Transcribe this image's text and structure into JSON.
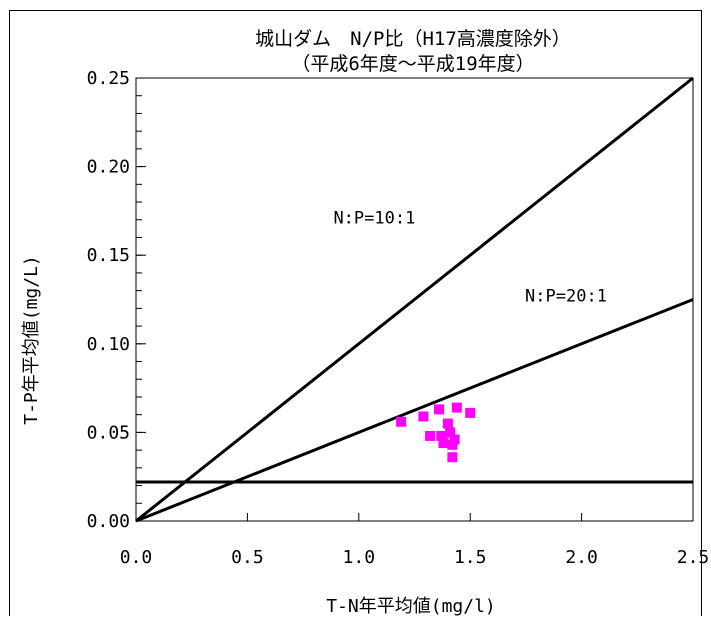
{
  "chart_data": {
    "type": "scatter",
    "title": "城山ダム　N/P比（H17高濃度除外）",
    "subtitle": "（平成6年度～平成19年度）",
    "xlabel": "T-N年平均値(mg/l)",
    "ylabel": "T-P年平均値(mg/L)",
    "xlim": [
      0,
      2.5
    ],
    "ylim": [
      0,
      0.25
    ],
    "x_ticks": [
      "0.0",
      "0.5",
      "1.0",
      "1.5",
      "2.0",
      "2.5"
    ],
    "y_ticks": [
      "0.00",
      "0.05",
      "0.10",
      "0.15",
      "0.20",
      "0.25"
    ],
    "grid": false,
    "marker_color": "#ff00ff",
    "points": [
      {
        "x": 1.19,
        "y": 0.056
      },
      {
        "x": 1.29,
        "y": 0.059
      },
      {
        "x": 1.32,
        "y": 0.048
      },
      {
        "x": 1.36,
        "y": 0.063
      },
      {
        "x": 1.37,
        "y": 0.048
      },
      {
        "x": 1.38,
        "y": 0.044
      },
      {
        "x": 1.4,
        "y": 0.055
      },
      {
        "x": 1.41,
        "y": 0.05
      },
      {
        "x": 1.42,
        "y": 0.043
      },
      {
        "x": 1.43,
        "y": 0.046
      },
      {
        "x": 1.44,
        "y": 0.064
      },
      {
        "x": 1.42,
        "y": 0.036
      },
      {
        "x": 1.5,
        "y": 0.061
      }
    ],
    "reference_lines": [
      {
        "label": "N:P=10:1",
        "slope": 0.1
      },
      {
        "label": "N:P=20:1",
        "slope": 0.05
      },
      {
        "label": "",
        "y": 0.022
      }
    ]
  }
}
